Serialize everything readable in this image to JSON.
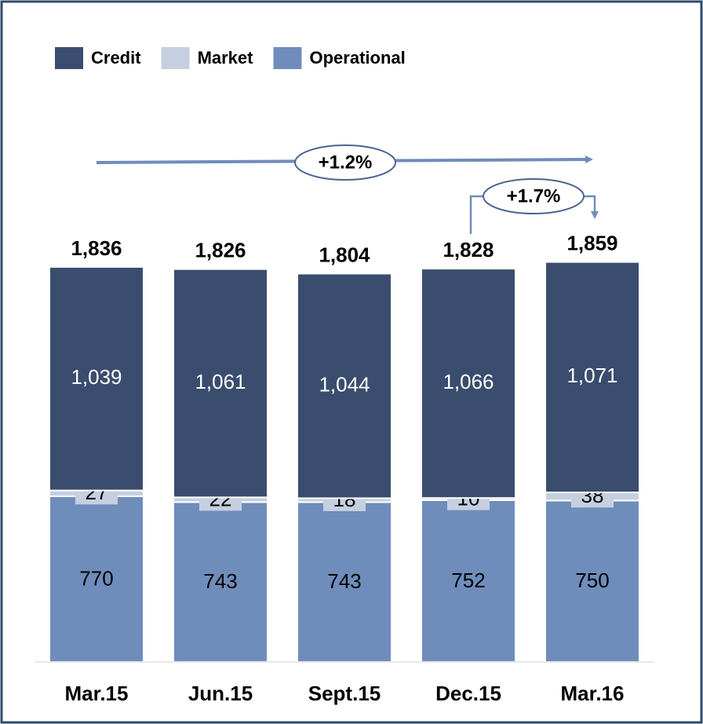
{
  "chart_data": {
    "type": "stacked_bar",
    "categories": [
      "Mar.15",
      "Jun.15",
      "Sept.15",
      "Dec.15",
      "Mar.16"
    ],
    "series": [
      {
        "name": "Credit",
        "color": "#3a4d6e",
        "values": [
          1039,
          1061,
          1044,
          1066,
          1071
        ],
        "value_labels": [
          "1,039",
          "1,061",
          "1,044",
          "1,066",
          "1,071"
        ]
      },
      {
        "name": "Market",
        "color": "#c5cfe0",
        "values": [
          27,
          22,
          18,
          10,
          38
        ]
      },
      {
        "name": "Operational",
        "color": "#6f8dbb",
        "values": [
          770,
          743,
          743,
          752,
          750
        ]
      }
    ],
    "totals": {
      "values": [
        1836,
        1826,
        1804,
        1828,
        1859
      ],
      "value_labels": [
        "1,836",
        "1,826",
        "1,804",
        "1,828",
        "1,859"
      ]
    },
    "annotations": [
      "+1.2%",
      "+1.7%"
    ],
    "ylim": [
      0,
      2000
    ],
    "legend": "top-left"
  }
}
